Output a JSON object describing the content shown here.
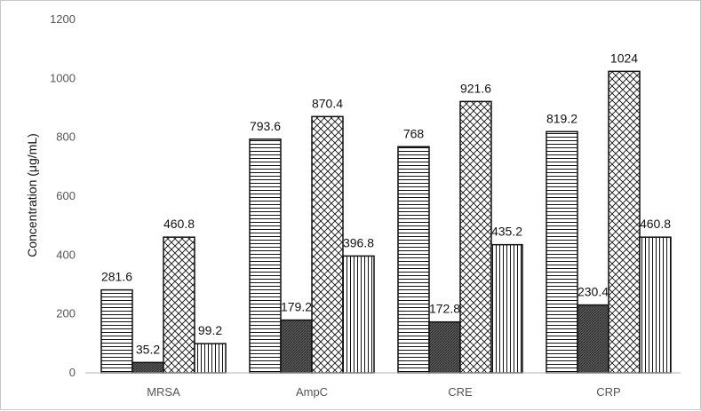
{
  "chart_data": {
    "type": "bar",
    "categories": [
      "MRSA",
      "AmpC",
      "CRE",
      "CRP"
    ],
    "series": [
      {
        "values": [
          281.6,
          793.6,
          768,
          819.2
        ],
        "pattern": "horizontal-lines"
      },
      {
        "values": [
          35.2,
          179.2,
          172.8,
          230.4
        ],
        "pattern": "dark-dense-hatch"
      },
      {
        "values": [
          460.8,
          870.4,
          921.6,
          1024
        ],
        "pattern": "crosshatch"
      },
      {
        "values": [
          99.2,
          396.8,
          435.2,
          460.8
        ],
        "pattern": "vertical-lines"
      }
    ],
    "data_labels": [
      [
        "281.6",
        "793.6",
        "768",
        "819.2"
      ],
      [
        "35.2",
        "179.2",
        "172.8",
        "230.4"
      ],
      [
        "460.8",
        "870.4",
        "921.6",
        "1024"
      ],
      [
        "99.2",
        "396.8",
        "435.2",
        "460.8"
      ]
    ],
    "ylabel": "Concentration (μg/mL)",
    "xlabel": "",
    "ylim": [
      0,
      1200
    ],
    "yticks": [
      "0",
      "200",
      "400",
      "600",
      "800",
      "1000",
      "1200"
    ],
    "grid": false,
    "legend": "none",
    "colors": {
      "bar_stroke": "#111111",
      "axis": "#b0b0b0",
      "text": "#555555"
    }
  }
}
